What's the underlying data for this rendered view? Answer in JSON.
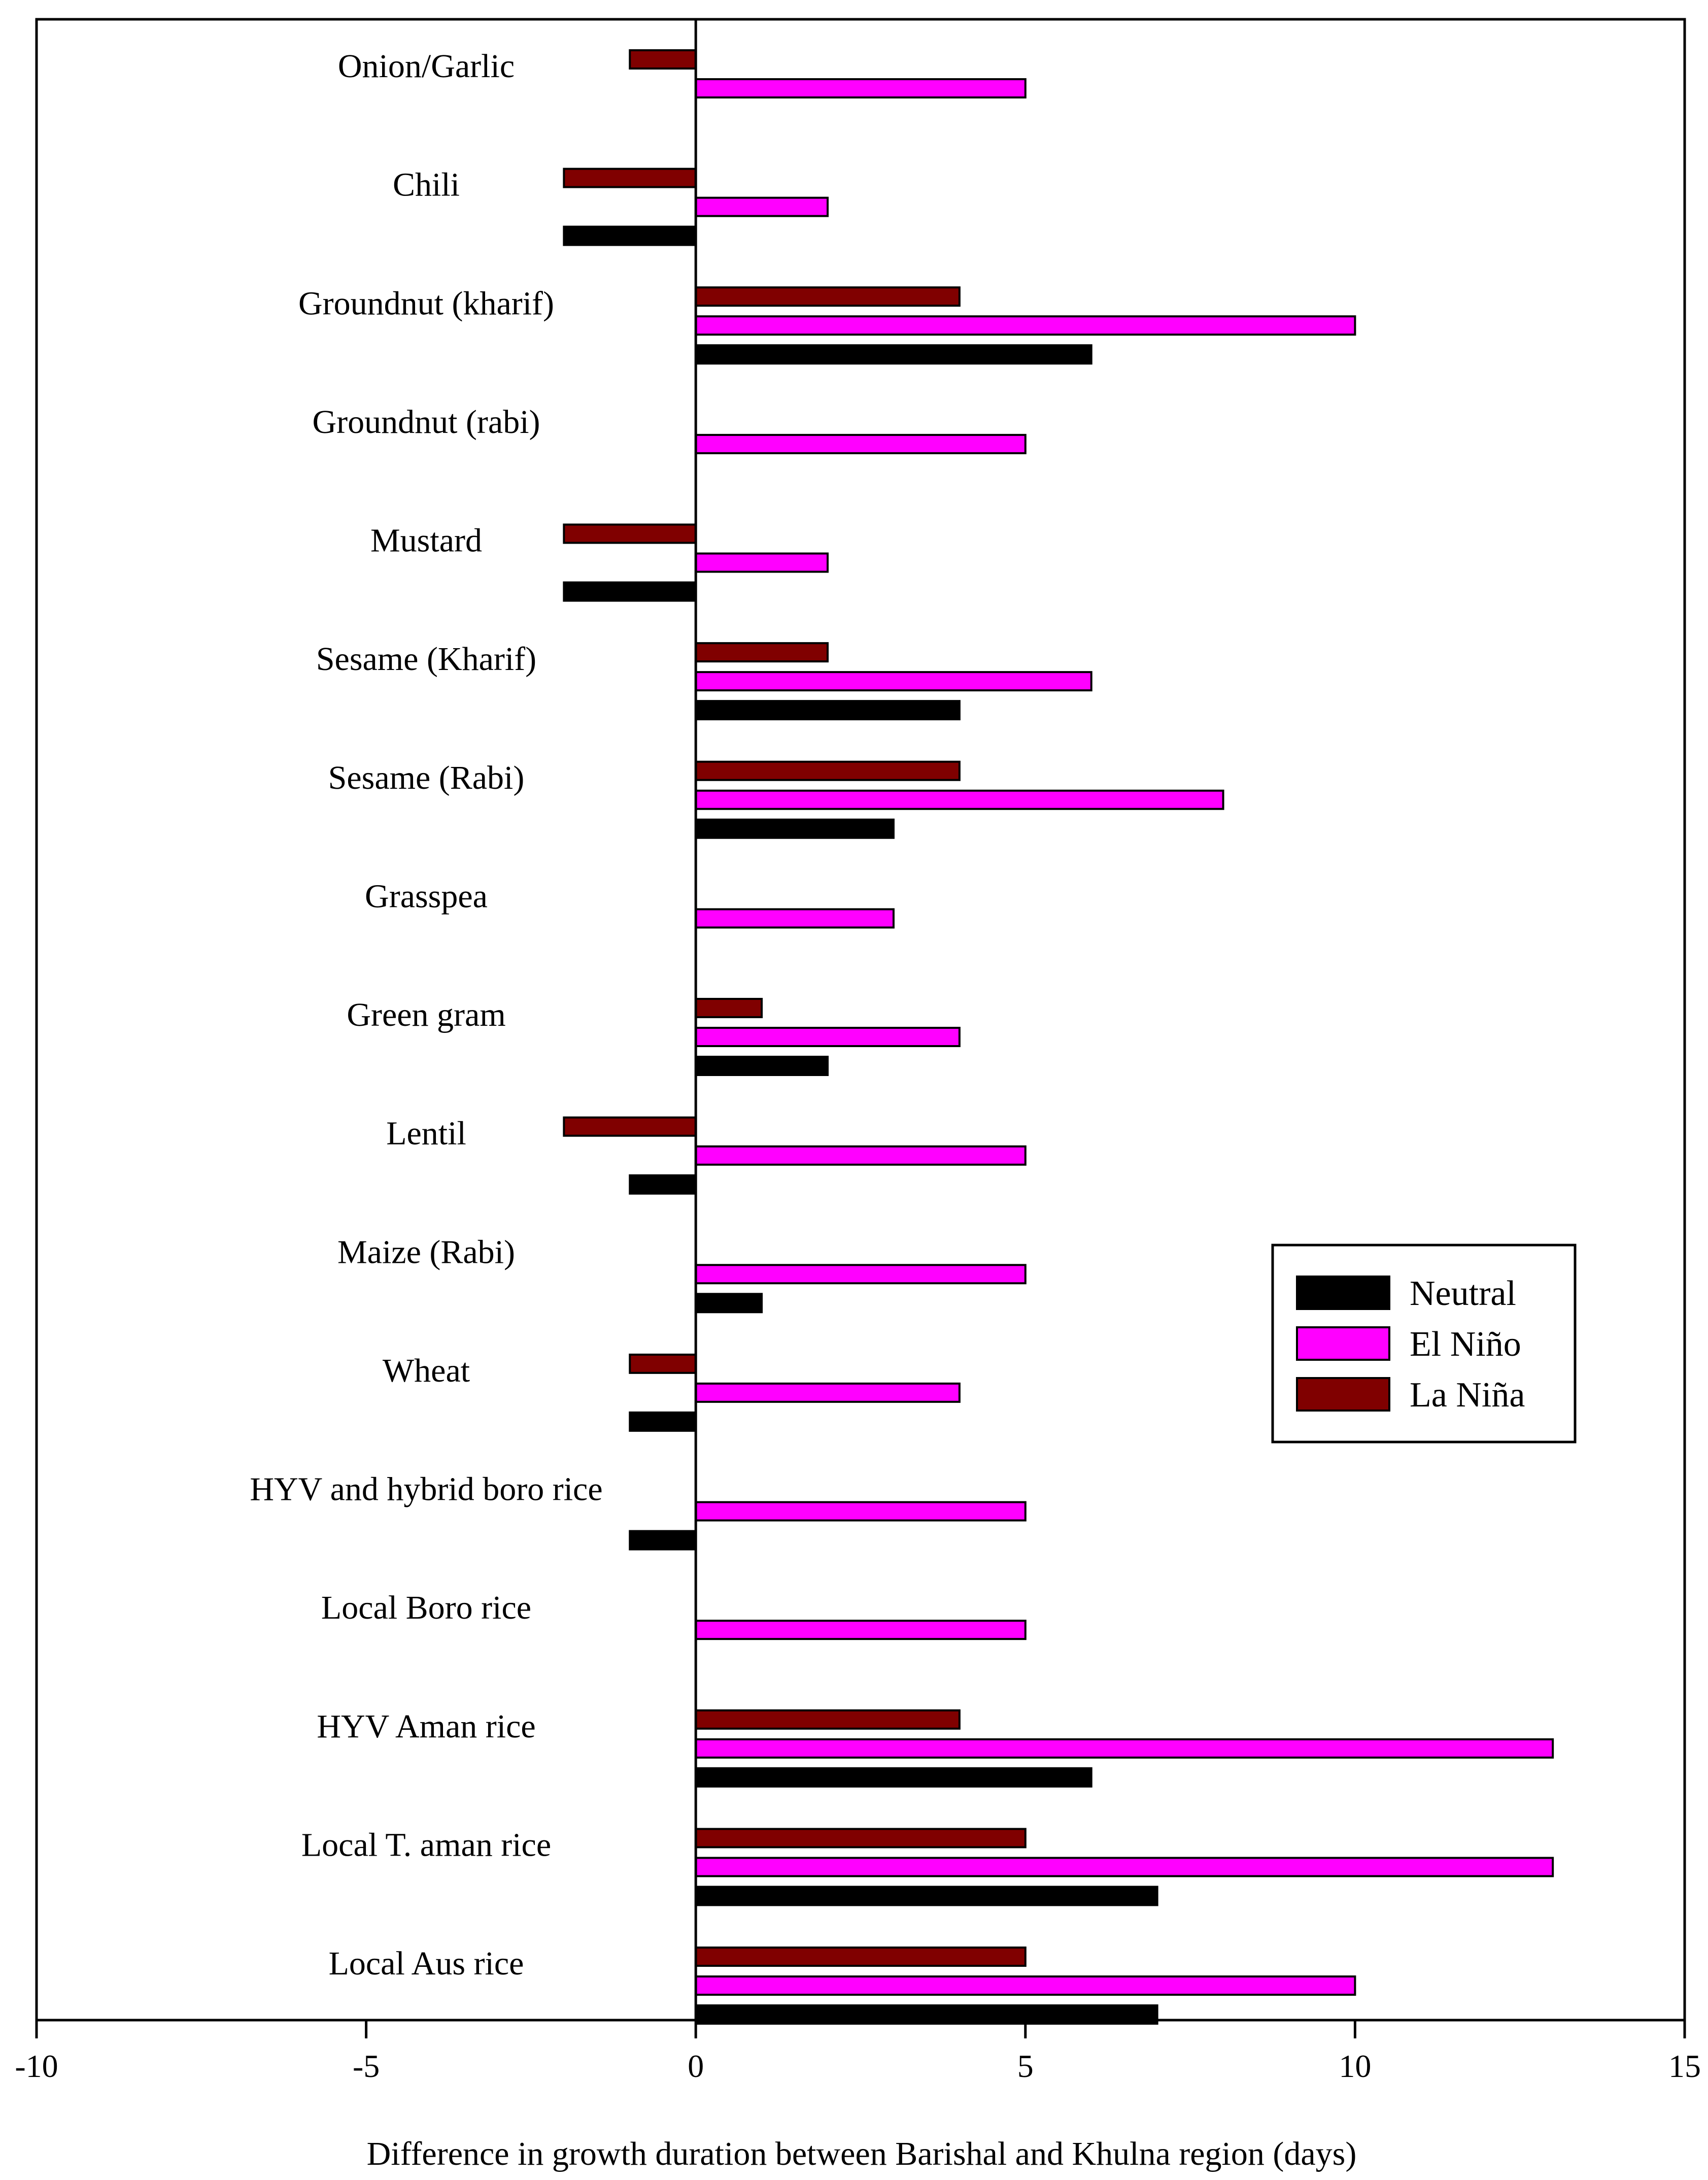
{
  "chart_data": {
    "type": "bar",
    "orientation": "horizontal",
    "title": "",
    "xlabel": "Difference in growth duration between Barishal and Khulna region (days)",
    "ylabel": "",
    "xlim": [
      -10,
      15
    ],
    "xticks": [
      -10,
      -5,
      0,
      5,
      10,
      15
    ],
    "xtick_labels": [
      "-10",
      "-5",
      "0",
      "5",
      "10",
      "15"
    ],
    "grid": false,
    "legend_position": "right-middle",
    "categories": [
      "Onion/Garlic",
      "Chili",
      "Groundnut (kharif)",
      "Groundnut (rabi)",
      "Mustard",
      "Sesame (Kharif)",
      "Sesame (Rabi)",
      "Grasspea",
      "Green gram",
      "Lentil",
      "Maize (Rabi)",
      "Wheat",
      "HYV and hybrid boro rice",
      "Local Boro rice",
      "HYV Aman rice",
      "Local T. aman rice",
      "Local Aus rice"
    ],
    "series": [
      {
        "name": "La Niña",
        "color": "#800000",
        "values": [
          -1,
          -2,
          4,
          0,
          -2,
          2,
          4,
          0,
          1,
          -2,
          0,
          -1,
          0,
          0,
          4,
          5,
          5
        ]
      },
      {
        "name": "El Niño",
        "color": "#ff00ff",
        "values": [
          5,
          2,
          10,
          5,
          2,
          6,
          8,
          3,
          4,
          5,
          5,
          4,
          5,
          5,
          13,
          13,
          10
        ]
      },
      {
        "name": "Neutral",
        "color": "#000000",
        "values": [
          0,
          -2,
          6,
          0,
          -2,
          4,
          3,
          0,
          2,
          -1,
          1,
          -1,
          -1,
          0,
          6,
          7,
          7
        ]
      }
    ],
    "legend": {
      "entries": [
        {
          "label": "Neutral",
          "color": "#000000"
        },
        {
          "label": "El Niño",
          "color": "#ff00ff"
        },
        {
          "label": "La Niña",
          "color": "#800000"
        }
      ]
    }
  }
}
